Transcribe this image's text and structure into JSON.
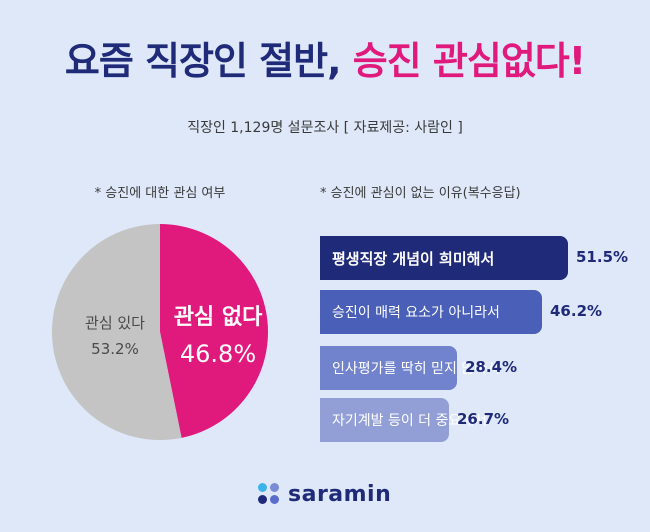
{
  "title": {
    "part1": "요즘 직장인 절반,",
    "part2": "승진 관심없다!"
  },
  "subtitle": "직장인 1,129명 설문조사 [ 자료제공: 사람인 ]",
  "logo": {
    "text": "saramin"
  },
  "chart_data": [
    {
      "type": "pie",
      "title": "* 승진에 대한 관심 여부",
      "categories": [
        "관심 있다",
        "관심 없다"
      ],
      "values": [
        53.2,
        46.8
      ],
      "value_labels": [
        "53.2%",
        "46.8%"
      ],
      "colors": [
        "#c4c4c4",
        "#e0197d"
      ]
    },
    {
      "type": "bar",
      "orientation": "horizontal",
      "title": "* 승진에 관심이 없는 이유(복수응답)",
      "categories": [
        "평생직장 개념이 희미해서",
        "승진이 매력 요소가 아니라서",
        "인사평가를 딱히 믿지 않아서",
        "자기계발 등이 더 중요해서"
      ],
      "values": [
        51.5,
        46.2,
        28.4,
        26.7
      ],
      "value_labels": [
        "51.5%",
        "46.2%",
        "28.4%",
        "26.7%"
      ],
      "colors": [
        "#1f2a78",
        "#4a5fb8",
        "#7183cc",
        "#929fd6"
      ]
    }
  ]
}
